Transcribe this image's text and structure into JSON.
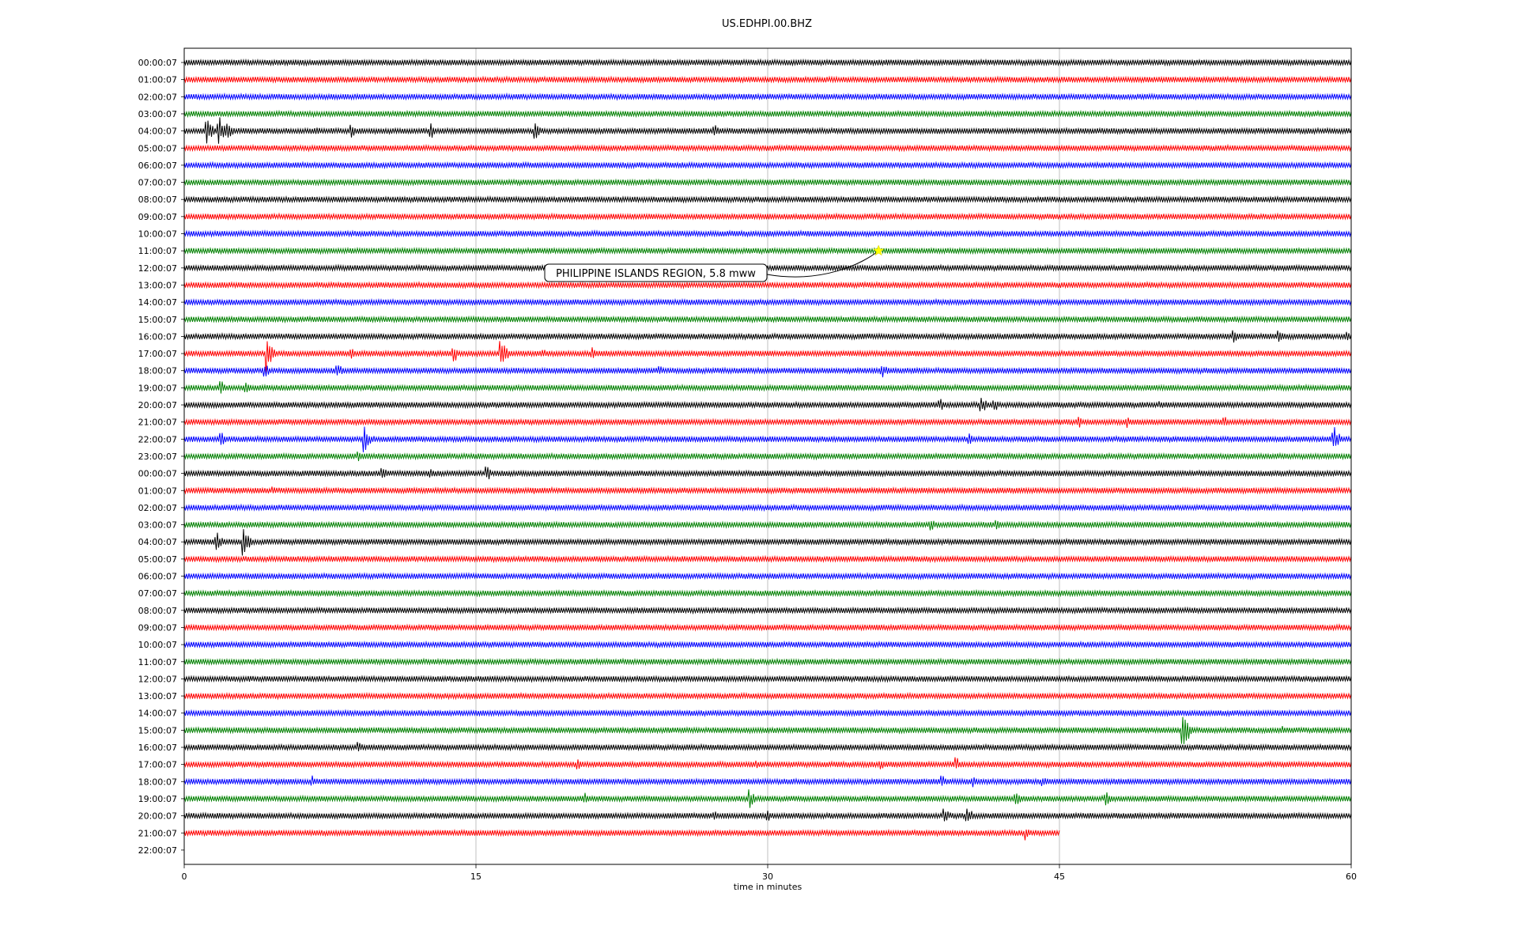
{
  "chart_data": {
    "type": "line",
    "title": "US.EDHPI.00.BHZ",
    "xlabel": "time in minutes",
    "ylabel": "",
    "xlim": [
      0,
      60
    ],
    "x_ticks": [
      "0",
      "15",
      "30",
      "45",
      "60"
    ],
    "grid_x": [
      15,
      30,
      45
    ],
    "row_labels": [
      "00:00:07",
      "01:00:07",
      "02:00:07",
      "03:00:07",
      "04:00:07",
      "05:00:07",
      "06:00:07",
      "07:00:07",
      "08:00:07",
      "09:00:07",
      "10:00:07",
      "11:00:07",
      "12:00:07",
      "13:00:07",
      "14:00:07",
      "15:00:07",
      "16:00:07",
      "17:00:07",
      "18:00:07",
      "19:00:07",
      "20:00:07",
      "21:00:07",
      "22:00:07",
      "23:00:07",
      "00:00:07",
      "01:00:07",
      "02:00:07",
      "03:00:07",
      "04:00:07",
      "05:00:07",
      "06:00:07",
      "07:00:07",
      "08:00:07",
      "09:00:07",
      "10:00:07",
      "11:00:07",
      "12:00:07",
      "13:00:07",
      "14:00:07",
      "15:00:07",
      "16:00:07",
      "17:00:07",
      "18:00:07",
      "19:00:07",
      "20:00:07",
      "21:00:07",
      "22:00:07"
    ],
    "trace_colors": [
      "#000000",
      "#ff0000",
      "#0000ff",
      "#008000"
    ],
    "trace_count": 46,
    "last_trace_end_minute": 45,
    "bursts": [
      {
        "row": 4,
        "minute": 1.2,
        "amp": 0.9
      },
      {
        "row": 4,
        "minute": 1.8,
        "amp": 1.0
      },
      {
        "row": 4,
        "minute": 2.3,
        "amp": 0.7
      },
      {
        "row": 4,
        "minute": 6.8,
        "amp": 0.4
      },
      {
        "row": 4,
        "minute": 8.6,
        "amp": 0.6
      },
      {
        "row": 4,
        "minute": 12.7,
        "amp": 0.5
      },
      {
        "row": 4,
        "minute": 18.1,
        "amp": 0.5
      },
      {
        "row": 4,
        "minute": 27.3,
        "amp": 0.4
      },
      {
        "row": 16,
        "minute": 54.0,
        "amp": 0.4
      },
      {
        "row": 16,
        "minute": 56.3,
        "amp": 0.5
      },
      {
        "row": 16,
        "minute": 59.8,
        "amp": 0.3
      },
      {
        "row": 17,
        "minute": 4.3,
        "amp": 1.4
      },
      {
        "row": 17,
        "minute": 8.6,
        "amp": 0.4
      },
      {
        "row": 17,
        "minute": 13.9,
        "amp": 0.6
      },
      {
        "row": 17,
        "minute": 16.3,
        "amp": 1.2
      },
      {
        "row": 17,
        "minute": 18.5,
        "amp": 0.4
      },
      {
        "row": 17,
        "minute": 21.0,
        "amp": 0.4
      },
      {
        "row": 18,
        "minute": 4.2,
        "amp": 0.4
      },
      {
        "row": 18,
        "minute": 7.9,
        "amp": 0.5
      },
      {
        "row": 18,
        "minute": 24.5,
        "amp": 0.3
      },
      {
        "row": 18,
        "minute": 35.9,
        "amp": 0.5
      },
      {
        "row": 19,
        "minute": 1.9,
        "amp": 0.5
      },
      {
        "row": 19,
        "minute": 3.2,
        "amp": 0.4
      },
      {
        "row": 20,
        "minute": 38.9,
        "amp": 0.4
      },
      {
        "row": 20,
        "minute": 41.0,
        "amp": 0.6
      },
      {
        "row": 20,
        "minute": 41.7,
        "amp": 0.4
      },
      {
        "row": 20,
        "minute": 50.2,
        "amp": 0.3
      },
      {
        "row": 21,
        "minute": 46.0,
        "amp": 0.4
      },
      {
        "row": 21,
        "minute": 48.5,
        "amp": 0.4
      },
      {
        "row": 21,
        "minute": 53.5,
        "amp": 0.4
      },
      {
        "row": 22,
        "minute": 1.9,
        "amp": 0.5
      },
      {
        "row": 22,
        "minute": 9.3,
        "amp": 1.0
      },
      {
        "row": 22,
        "minute": 40.4,
        "amp": 0.4
      },
      {
        "row": 22,
        "minute": 59.1,
        "amp": 1.0
      },
      {
        "row": 23,
        "minute": 9.0,
        "amp": 0.4
      },
      {
        "row": 24,
        "minute": 10.2,
        "amp": 0.5
      },
      {
        "row": 24,
        "minute": 12.7,
        "amp": 0.4
      },
      {
        "row": 24,
        "minute": 15.6,
        "amp": 0.5
      },
      {
        "row": 25,
        "minute": 4.6,
        "amp": 0.3
      },
      {
        "row": 25,
        "minute": 17.9,
        "amp": 0.3
      },
      {
        "row": 27,
        "minute": 38.4,
        "amp": 0.4
      },
      {
        "row": 27,
        "minute": 41.8,
        "amp": 0.4
      },
      {
        "row": 28,
        "minute": 1.7,
        "amp": 0.6
      },
      {
        "row": 28,
        "minute": 3.1,
        "amp": 1.0
      },
      {
        "row": 39,
        "minute": 51.4,
        "amp": 1.3
      },
      {
        "row": 39,
        "minute": 56.5,
        "amp": 0.3
      },
      {
        "row": 40,
        "minute": 9.0,
        "amp": 0.4
      },
      {
        "row": 41,
        "minute": 20.3,
        "amp": 0.4
      },
      {
        "row": 41,
        "minute": 29.5,
        "amp": 0.3
      },
      {
        "row": 41,
        "minute": 35.8,
        "amp": 0.4
      },
      {
        "row": 41,
        "minute": 39.7,
        "amp": 0.5
      },
      {
        "row": 42,
        "minute": 6.6,
        "amp": 0.4
      },
      {
        "row": 42,
        "minute": 39.0,
        "amp": 0.4
      },
      {
        "row": 42,
        "minute": 40.6,
        "amp": 0.4
      },
      {
        "row": 42,
        "minute": 44.2,
        "amp": 0.4
      },
      {
        "row": 43,
        "minute": 20.6,
        "amp": 0.4
      },
      {
        "row": 43,
        "minute": 29.1,
        "amp": 0.6
      },
      {
        "row": 43,
        "minute": 42.8,
        "amp": 0.5
      },
      {
        "row": 43,
        "minute": 47.4,
        "amp": 0.5
      },
      {
        "row": 44,
        "minute": 27.3,
        "amp": 0.3
      },
      {
        "row": 44,
        "minute": 30.0,
        "amp": 0.4
      },
      {
        "row": 44,
        "minute": 39.1,
        "amp": 0.6
      },
      {
        "row": 44,
        "minute": 40.3,
        "amp": 0.7
      },
      {
        "row": 45,
        "minute": 43.3,
        "amp": 0.5
      }
    ],
    "event": {
      "label": "PHILIPPINE ISLANDS REGION, 5.8 mww",
      "row": 11,
      "minute": 35.7,
      "marker_color": "#ffff00"
    }
  }
}
